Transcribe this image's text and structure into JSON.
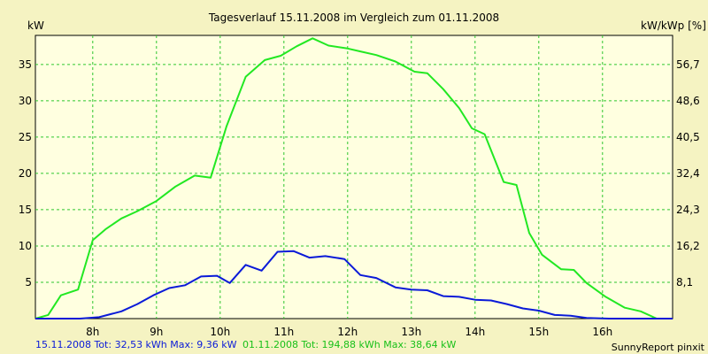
{
  "chart_data": {
    "type": "line",
    "title": "Tagesverlauf 15.11.2008 im Vergleich zum 01.11.2008",
    "ylabel_left": "kW",
    "ylabel_right": "kW/kWp [%]",
    "x_range": [
      7.1,
      17.1
    ],
    "ylim": [
      0,
      39
    ],
    "x_ticks": [
      {
        "x": 8,
        "label": "8h"
      },
      {
        "x": 9,
        "label": "9h"
      },
      {
        "x": 10,
        "label": "10h"
      },
      {
        "x": 11,
        "label": "11h"
      },
      {
        "x": 12,
        "label": "12h"
      },
      {
        "x": 13,
        "label": "13h"
      },
      {
        "x": 14,
        "label": "14h"
      },
      {
        "x": 15,
        "label": "15h"
      },
      {
        "x": 16,
        "label": "16h"
      }
    ],
    "y_ticks_left": [
      {
        "y": 5,
        "label": "5"
      },
      {
        "y": 10,
        "label": "10"
      },
      {
        "y": 15,
        "label": "15"
      },
      {
        "y": 20,
        "label": "20"
      },
      {
        "y": 25,
        "label": "25"
      },
      {
        "y": 30,
        "label": "30"
      },
      {
        "y": 35,
        "label": "35"
      }
    ],
    "y_ticks_right": [
      {
        "y": 5,
        "label": "8,1"
      },
      {
        "y": 10,
        "label": "16,2"
      },
      {
        "y": 15,
        "label": "24,3"
      },
      {
        "y": 20,
        "label": "32,4"
      },
      {
        "y": 25,
        "label": "40,5"
      },
      {
        "y": 30,
        "label": "48,6"
      },
      {
        "y": 35,
        "label": "56,7"
      }
    ],
    "grid": true,
    "series": [
      {
        "color": "#22e822",
        "points": [
          [
            7.1,
            0
          ],
          [
            7.3,
            0.5
          ],
          [
            7.5,
            3.2
          ],
          [
            7.77,
            4.0
          ],
          [
            8.0,
            10.8
          ],
          [
            8.2,
            12.3
          ],
          [
            8.45,
            13.8
          ],
          [
            8.7,
            14.8
          ],
          [
            9.0,
            16.2
          ],
          [
            9.3,
            18.2
          ],
          [
            9.6,
            19.7
          ],
          [
            9.85,
            19.4
          ],
          [
            10.1,
            26.5
          ],
          [
            10.4,
            33.3
          ],
          [
            10.7,
            35.6
          ],
          [
            10.95,
            36.2
          ],
          [
            11.2,
            37.5
          ],
          [
            11.45,
            38.6
          ],
          [
            11.7,
            37.6
          ],
          [
            12.0,
            37.2
          ],
          [
            12.2,
            36.8
          ],
          [
            12.45,
            36.3
          ],
          [
            12.75,
            35.4
          ],
          [
            13.05,
            34.0
          ],
          [
            13.25,
            33.8
          ],
          [
            13.5,
            31.6
          ],
          [
            13.75,
            29.0
          ],
          [
            13.95,
            26.2
          ],
          [
            14.15,
            25.4
          ],
          [
            14.45,
            18.8
          ],
          [
            14.65,
            18.4
          ],
          [
            14.85,
            11.8
          ],
          [
            15.05,
            8.8
          ],
          [
            15.35,
            6.8
          ],
          [
            15.55,
            6.7
          ],
          [
            15.75,
            4.9
          ],
          [
            16.05,
            3.0
          ],
          [
            16.35,
            1.5
          ],
          [
            16.6,
            1.0
          ],
          [
            16.85,
            0
          ],
          [
            17.1,
            0
          ]
        ]
      },
      {
        "color": "#0a1ad8",
        "points": [
          [
            7.1,
            0
          ],
          [
            7.8,
            0
          ],
          [
            8.1,
            0.2
          ],
          [
            8.45,
            1.0
          ],
          [
            8.7,
            2.0
          ],
          [
            8.95,
            3.2
          ],
          [
            9.2,
            4.2
          ],
          [
            9.45,
            4.6
          ],
          [
            9.7,
            5.8
          ],
          [
            9.95,
            5.9
          ],
          [
            10.15,
            4.9
          ],
          [
            10.4,
            7.4
          ],
          [
            10.65,
            6.6
          ],
          [
            10.9,
            9.2
          ],
          [
            11.15,
            9.3
          ],
          [
            11.4,
            8.4
          ],
          [
            11.65,
            8.6
          ],
          [
            11.95,
            8.2
          ],
          [
            12.2,
            6.0
          ],
          [
            12.45,
            5.6
          ],
          [
            12.75,
            4.3
          ],
          [
            13.0,
            4.0
          ],
          [
            13.25,
            3.9
          ],
          [
            13.5,
            3.1
          ],
          [
            13.75,
            3.0
          ],
          [
            14.0,
            2.6
          ],
          [
            14.25,
            2.5
          ],
          [
            14.5,
            2.0
          ],
          [
            14.75,
            1.4
          ],
          [
            15.0,
            1.1
          ],
          [
            15.25,
            0.5
          ],
          [
            15.5,
            0.4
          ],
          [
            15.75,
            0.1
          ],
          [
            16.1,
            0
          ],
          [
            17.1,
            0
          ]
        ]
      }
    ],
    "footer_blue": "15.11.2008 Tot: 32,53 kWh Max: 9,36 kW",
    "footer_green": "01.11.2008 Tot: 194,88 kWh Max: 38,64 kW",
    "credit": "SunnyReport pinxit"
  }
}
